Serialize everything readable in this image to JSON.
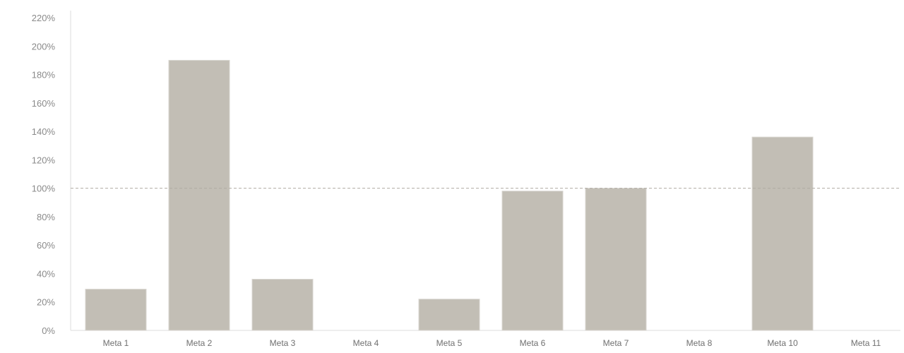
{
  "chart_data": {
    "type": "bar",
    "title": "",
    "xlabel": "",
    "ylabel": "",
    "categories": [
      "Meta 1",
      "Meta 2",
      "Meta 3",
      "Meta 4",
      "Meta 5",
      "Meta 6",
      "Meta 7",
      "Meta 8",
      "Meta 10",
      "Meta 11"
    ],
    "values": [
      29,
      190,
      36,
      0,
      22,
      98,
      100,
      0,
      136,
      0
    ],
    "ylim": [
      0,
      220
    ],
    "yticks": [
      0,
      20,
      40,
      60,
      80,
      100,
      120,
      140,
      160,
      180,
      200,
      220
    ],
    "ytick_labels": [
      "0%",
      "20%",
      "40%",
      "60%",
      "80%",
      "100%",
      "120%",
      "140%",
      "160%",
      "180%",
      "200%",
      "220%"
    ],
    "reference_line": 100,
    "grid": false,
    "bar_color": "#c2beb5",
    "reference_line_color": "#b0aca4",
    "axis_color": "#dcdcdc"
  }
}
